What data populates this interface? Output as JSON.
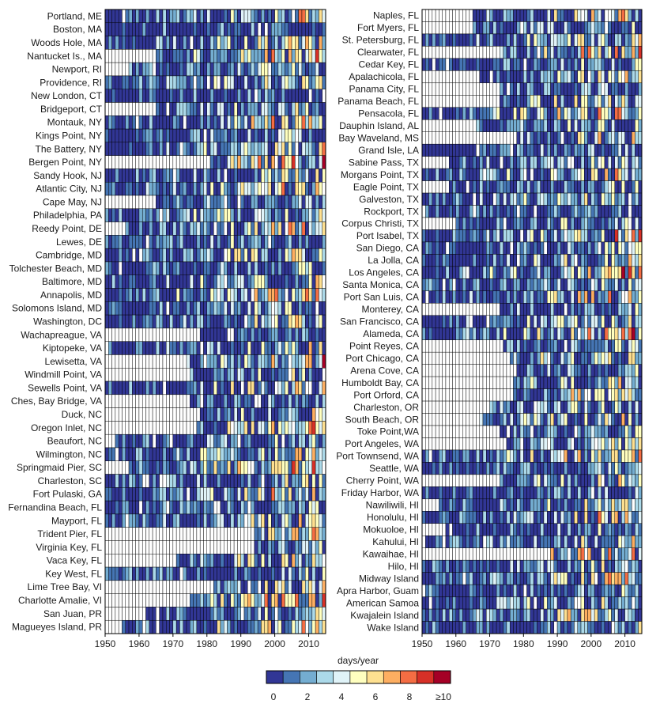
{
  "chart_data": [
    {
      "type": "heatmap",
      "panel": "left",
      "x_start": 1950,
      "x_end": 2014,
      "xticks": [
        1950,
        1960,
        1970,
        1980,
        1990,
        2000,
        2010
      ],
      "stations": [
        {
          "name": "Portland, ME",
          "record_start": 1950
        },
        {
          "name": "Boston, MA",
          "record_start": 1950
        },
        {
          "name": "Woods Hole, MA",
          "record_start": 1950
        },
        {
          "name": "Nantucket Is., MA",
          "record_start": 1965
        },
        {
          "name": "Newport, RI",
          "record_start": 1956
        },
        {
          "name": "Providence, RI",
          "record_start": 1950
        },
        {
          "name": "New London, CT",
          "record_start": 1950
        },
        {
          "name": "Bridgeport, CT",
          "record_start": 1965
        },
        {
          "name": "Montauk, NY",
          "record_start": 1950
        },
        {
          "name": "Kings Point, NY",
          "record_start": 1950
        },
        {
          "name": "The Battery, NY",
          "record_start": 1950
        },
        {
          "name": "Bergen Point, NY",
          "record_start": 1981
        },
        {
          "name": "Sandy Hook, NJ",
          "record_start": 1950
        },
        {
          "name": "Atlantic City, NJ",
          "record_start": 1950
        },
        {
          "name": "Cape May, NJ",
          "record_start": 1965
        },
        {
          "name": "Philadelphia, PA",
          "record_start": 1950
        },
        {
          "name": "Reedy Point, DE",
          "record_start": 1956
        },
        {
          "name": "Lewes, DE",
          "record_start": 1950
        },
        {
          "name": "Cambridge, MD",
          "record_start": 1950
        },
        {
          "name": "Tolchester Beach, MD",
          "record_start": 1950
        },
        {
          "name": "Baltimore, MD",
          "record_start": 1950
        },
        {
          "name": "Annapolis, MD",
          "record_start": 1950
        },
        {
          "name": "Solomons Island, MD",
          "record_start": 1950
        },
        {
          "name": "Washington, DC",
          "record_start": 1950
        },
        {
          "name": "Wachapreague, VA",
          "record_start": 1978
        },
        {
          "name": "Kiptopeke, VA",
          "record_start": 1951
        },
        {
          "name": "Lewisetta, VA",
          "record_start": 1974
        },
        {
          "name": "Windmill Point, VA",
          "record_start": 1975
        },
        {
          "name": "Sewells Point, VA",
          "record_start": 1950
        },
        {
          "name": "Ches, Bay Bridge, VA",
          "record_start": 1975
        },
        {
          "name": "Duck, NC",
          "record_start": 1978
        },
        {
          "name": "Oregon Inlet, NC",
          "record_start": 1977
        },
        {
          "name": "Beaufort, NC",
          "record_start": 1953
        },
        {
          "name": "Wilmington, NC",
          "record_start": 1950
        },
        {
          "name": "Springmaid Pier, SC",
          "record_start": 1957
        },
        {
          "name": "Charleston, SC",
          "record_start": 1950
        },
        {
          "name": "Fort Pulaski, GA",
          "record_start": 1950
        },
        {
          "name": "Fernandina Beach, FL",
          "record_start": 1950
        },
        {
          "name": "Mayport, FL",
          "record_start": 1950
        },
        {
          "name": "Trident Pier, FL",
          "record_start": 1994
        },
        {
          "name": "Virginia Key, FL",
          "record_start": 1994
        },
        {
          "name": "Vaca Key, FL",
          "record_start": 1971
        },
        {
          "name": "Key West, FL",
          "record_start": 1950
        },
        {
          "name": "Lime Tree Bay, VI",
          "record_start": 1982
        },
        {
          "name": "Charlotte Amalie, VI",
          "record_start": 1975
        },
        {
          "name": "San Juan, PR",
          "record_start": 1962
        },
        {
          "name": "Magueyes Island, PR",
          "record_start": 1955
        }
      ]
    },
    {
      "type": "heatmap",
      "panel": "right",
      "x_start": 1950,
      "x_end": 2014,
      "xticks": [
        1950,
        1960,
        1970,
        1980,
        1990,
        2000,
        2010
      ],
      "stations": [
        {
          "name": "Naples, FL",
          "record_start": 1965
        },
        {
          "name": "Fort Myers, FL",
          "record_start": 1965
        },
        {
          "name": "St. Petersburg, FL",
          "record_start": 1950
        },
        {
          "name": "Clearwater, FL",
          "record_start": 1973
        },
        {
          "name": "Cedar Key, FL",
          "record_start": 1950
        },
        {
          "name": "Apalachicola, FL",
          "record_start": 1967
        },
        {
          "name": "Panama City, FL",
          "record_start": 1973
        },
        {
          "name": "Panama Beach, FL",
          "record_start": 1973
        },
        {
          "name": "Pensacola, FL",
          "record_start": 1950
        },
        {
          "name": "Dauphin Island, AL",
          "record_start": 1966
        },
        {
          "name": "Bay Waveland, MS",
          "record_start": 1978
        },
        {
          "name": "Grand Isle, LA",
          "record_start": 1950
        },
        {
          "name": "Sabine Pass, TX",
          "record_start": 1958
        },
        {
          "name": "Morgans Point, TX",
          "record_start": 1950
        },
        {
          "name": "Eagle Point, TX",
          "record_start": 1958
        },
        {
          "name": "Galveston, TX",
          "record_start": 1950
        },
        {
          "name": "Rockport, TX",
          "record_start": 1950
        },
        {
          "name": "Corpus Christi, TX",
          "record_start": 1960
        },
        {
          "name": "Port Isabel, TX",
          "record_start": 1950
        },
        {
          "name": "San Diego, CA",
          "record_start": 1950
        },
        {
          "name": "La Jolla, CA",
          "record_start": 1950
        },
        {
          "name": "Los Angeles, CA",
          "record_start": 1950
        },
        {
          "name": "Santa Monica, CA",
          "record_start": 1950
        },
        {
          "name": "Port San Luis, CA",
          "record_start": 1950
        },
        {
          "name": "Monterey, CA",
          "record_start": 1973
        },
        {
          "name": "San Francisco, CA",
          "record_start": 1950
        },
        {
          "name": "Alameda, CA",
          "record_start": 1950
        },
        {
          "name": "Point Reyes, CA",
          "record_start": 1974
        },
        {
          "name": "Port Chicago, CA",
          "record_start": 1976
        },
        {
          "name": "Arena Cove, CA",
          "record_start": 1978
        },
        {
          "name": "Humboldt Bay, CA",
          "record_start": 1977
        },
        {
          "name": "Port Orford, CA",
          "record_start": 1977
        },
        {
          "name": "Charleston, OR",
          "record_start": 1970
        },
        {
          "name": "South Beach, OR",
          "record_start": 1967
        },
        {
          "name": "Toke Point,WA",
          "record_start": 1973
        },
        {
          "name": "Port Angeles, WA",
          "record_start": 1975
        },
        {
          "name": "Port Townsend, WA",
          "record_start": 1950
        },
        {
          "name": "Seattle, WA",
          "record_start": 1950
        },
        {
          "name": "Cherry Point, WA",
          "record_start": 1973
        },
        {
          "name": "Friday Harbor, WA",
          "record_start": 1950
        },
        {
          "name": "Nawiliwili, HI",
          "record_start": 1955
        },
        {
          "name": "Honolulu, HI",
          "record_start": 1950
        },
        {
          "name": "Mokuoloe, HI",
          "record_start": 1957
        },
        {
          "name": "Kahului, HI",
          "record_start": 1951
        },
        {
          "name": "Kawaihae, HI",
          "record_start": 1988
        },
        {
          "name": "Hilo, HI",
          "record_start": 1950
        },
        {
          "name": "Midway Island",
          "record_start": 1950
        },
        {
          "name": "Apra Harbor, Guam",
          "record_start": 1950
        },
        {
          "name": "American Samoa",
          "record_start": 1950
        },
        {
          "name": "Kwajalein Island",
          "record_start": 1950
        },
        {
          "name": "Wake Island",
          "record_start": 1950
        }
      ]
    }
  ],
  "colorbar": {
    "title": "days/year",
    "tick_labels": [
      "0",
      "2",
      "4",
      "6",
      "8",
      "≥10"
    ],
    "min": 0,
    "max": 10,
    "colors": [
      "#313695",
      "#4575b4",
      "#74add1",
      "#abd9e9",
      "#e0f3f8",
      "#ffffbf",
      "#fee090",
      "#fdae61",
      "#f46d43",
      "#d73027",
      "#a50026"
    ]
  },
  "colors": {
    "no_data": "#ffffff",
    "grid_line": "#000000",
    "text": "#1a1a1a"
  }
}
